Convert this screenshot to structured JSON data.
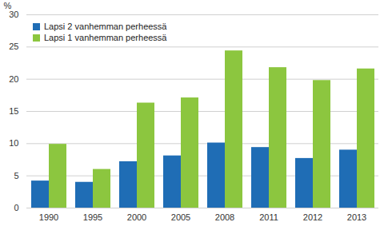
{
  "chart_data": {
    "type": "bar",
    "y_label": "%",
    "categories": [
      "1990",
      "1995",
      "2000",
      "2005",
      "2008",
      "2011",
      "2012",
      "2013"
    ],
    "series": [
      {
        "name": "Lapsi 2 vanhemman perheessä",
        "color": "#1f6db5",
        "values": [
          4.2,
          4.0,
          7.2,
          8.1,
          10.1,
          9.4,
          7.7,
          9.0
        ]
      },
      {
        "name": "Lapsi 1 vanhemman perheessä",
        "color": "#8cc63f",
        "values": [
          9.9,
          6.0,
          16.3,
          17.1,
          24.4,
          21.8,
          19.8,
          21.6
        ]
      }
    ],
    "ylim": [
      0,
      30
    ],
    "yticks": [
      0,
      5,
      10,
      15,
      20,
      25,
      30
    ],
    "grid": true,
    "legend": "top-left"
  }
}
